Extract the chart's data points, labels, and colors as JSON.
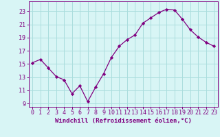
{
  "x": [
    0,
    1,
    2,
    3,
    4,
    5,
    6,
    7,
    8,
    9,
    10,
    11,
    12,
    13,
    14,
    15,
    16,
    17,
    18,
    19,
    20,
    21,
    22,
    23
  ],
  "y": [
    15.2,
    15.7,
    14.4,
    13.1,
    12.6,
    10.5,
    11.7,
    9.3,
    11.5,
    13.5,
    16.0,
    17.7,
    18.7,
    19.4,
    21.2,
    22.0,
    22.8,
    23.3,
    23.2,
    21.8,
    20.2,
    19.1,
    18.3,
    17.7
  ],
  "line_color": "#800080",
  "marker_color": "#800080",
  "bg_color": "#d8f5f5",
  "grid_color": "#aadddd",
  "xlabel": "Windchill (Refroidissement éolien,°C)",
  "xlim": [
    -0.5,
    23.5
  ],
  "ylim": [
    8.5,
    24.5
  ],
  "yticks": [
    9,
    11,
    13,
    15,
    17,
    19,
    21,
    23
  ],
  "xticks": [
    0,
    1,
    2,
    3,
    4,
    5,
    6,
    7,
    8,
    9,
    10,
    11,
    12,
    13,
    14,
    15,
    16,
    17,
    18,
    19,
    20,
    21,
    22,
    23
  ],
  "tick_color": "#800080",
  "label_fontsize": 6.5,
  "tick_fontsize": 6.0
}
